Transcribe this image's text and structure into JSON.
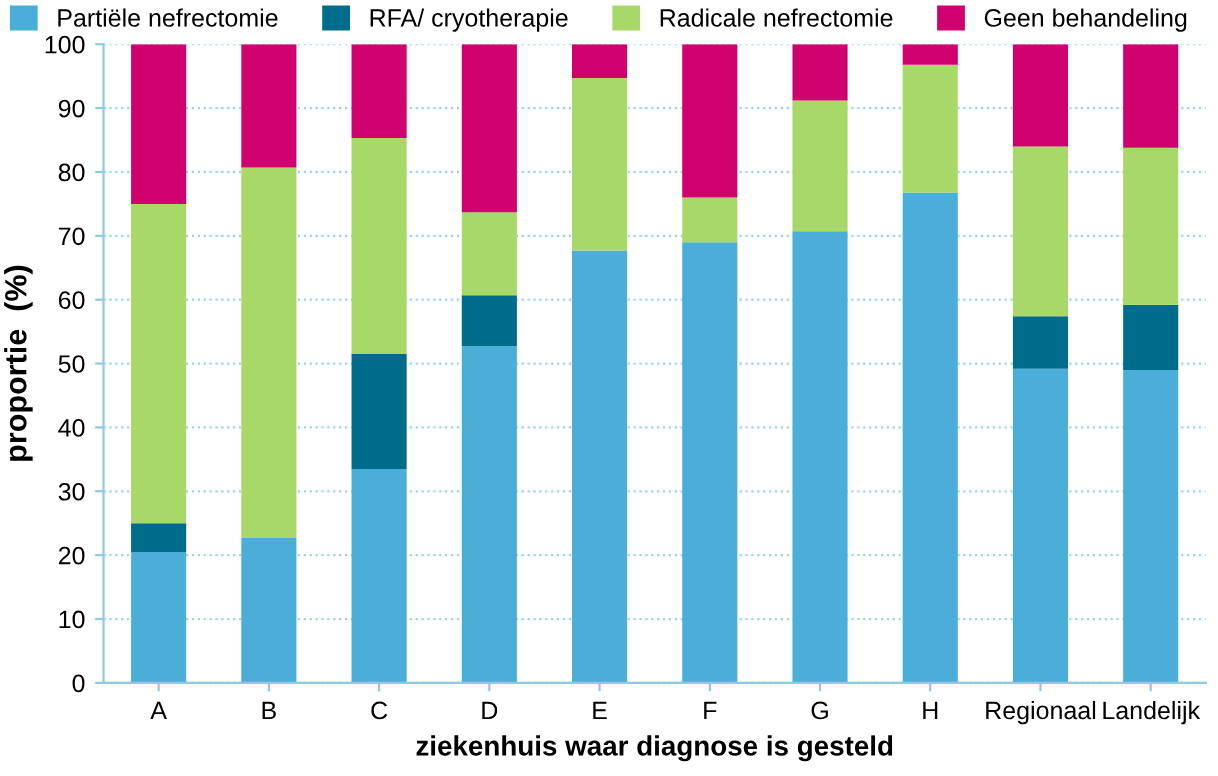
{
  "chart_data": {
    "type": "bar",
    "stacked": true,
    "xlabel": "ziekenhuis waar diagnose is gesteld",
    "ylabel": "proportie  (%)",
    "categories": [
      "A",
      "B",
      "C",
      "D",
      "E",
      "F",
      "G",
      "H",
      "Regionaal",
      "Landelijk"
    ],
    "series": [
      {
        "name": "Partiële nefrectomie",
        "color": "#4aaed8",
        "values": [
          20.5,
          22.7,
          33.5,
          52.7,
          67.7,
          69,
          70.7,
          76.8,
          49.2,
          49
        ]
      },
      {
        "name": "RFA/ cryotherapie",
        "color": "#006c8c",
        "values": [
          4.5,
          0,
          18,
          8,
          0,
          0,
          0,
          0,
          8.2,
          10.2
        ]
      },
      {
        "name": "Radicale nefrectomie",
        "color": "#a8d868",
        "values": [
          50,
          58,
          33.8,
          13,
          27,
          7,
          20.5,
          20,
          26.6,
          24.6
        ]
      },
      {
        "name": "Geen behandeling",
        "color": "#d0006f",
        "values": [
          25,
          19.3,
          14.7,
          26.3,
          5.3,
          24,
          8.8,
          3.2,
          16,
          16.2
        ]
      }
    ],
    "ylim": [
      0,
      100
    ],
    "yticks": [
      0,
      10,
      20,
      30,
      40,
      50,
      60,
      70,
      80,
      90,
      100
    ],
    "grid": "y",
    "legend": "top"
  }
}
